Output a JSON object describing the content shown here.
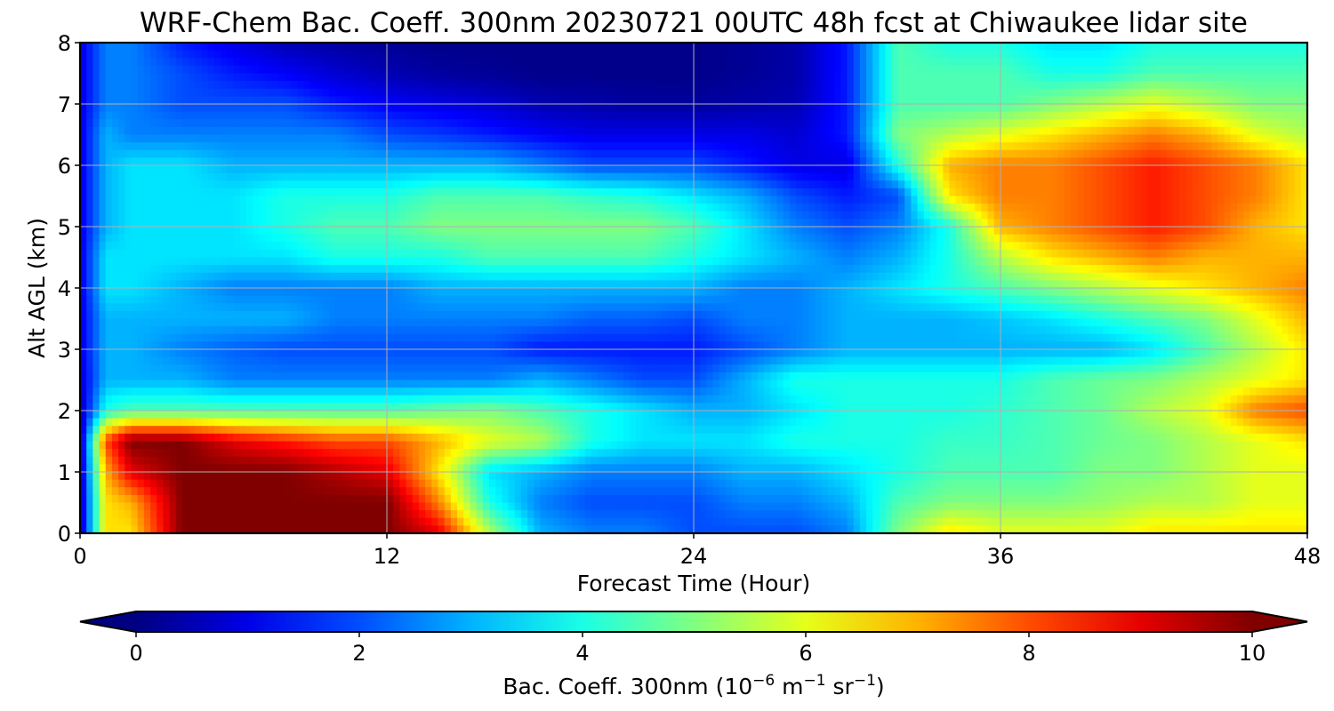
{
  "chart_data": {
    "type": "heatmap",
    "title": "WRF-Chem Bac. Coeff. 300nm  20230721 00UTC 48h fcst at Chiwaukee lidar site",
    "xlabel": "Forecast Time (Hour)",
    "ylabel": "Alt AGL (km)",
    "xlim": [
      0,
      48
    ],
    "ylim": [
      0,
      8
    ],
    "x_ticks": [
      0,
      12,
      24,
      36,
      48
    ],
    "y_ticks": [
      0,
      1,
      2,
      3,
      4,
      5,
      6,
      7,
      8
    ],
    "grid": true,
    "colormap": "jet",
    "colorbar": {
      "label_main": "Bac. Coeff. 300nm  (10",
      "label_exp1": "−6",
      "label_mid": " m",
      "label_exp2": "−1",
      "label_mid2": " sr",
      "label_exp3": "−1",
      "label_end": ")",
      "range": [
        0,
        10
      ],
      "ticks": [
        0,
        2,
        4,
        6,
        8,
        10
      ],
      "extend": "both",
      "placement": "bottom"
    },
    "x": [
      0,
      1,
      2,
      4,
      6,
      8,
      10,
      12,
      14,
      16,
      18,
      20,
      22,
      24,
      26,
      28,
      30,
      32,
      34,
      36,
      38,
      40,
      42,
      44,
      46,
      48
    ],
    "y": [
      0,
      0.5,
      1,
      1.5,
      2,
      2.5,
      3,
      3.5,
      4,
      4.5,
      5,
      5.5,
      6,
      6.5,
      7,
      7.5,
      8
    ],
    "z": [
      [
        0.5,
        6.5,
        6.5,
        10,
        10,
        10,
        10,
        10,
        9,
        5.5,
        3,
        2.5,
        2.5,
        2,
        2,
        2,
        2.5,
        5,
        6.5,
        6,
        6,
        6,
        6.5,
        6.5,
        6.5,
        6.5
      ],
      [
        0.5,
        6.5,
        7,
        10,
        10,
        10,
        10,
        10,
        7.5,
        4,
        2.5,
        2,
        2,
        2,
        2.5,
        2.5,
        3,
        4.5,
        5,
        5,
        5,
        5.2,
        5.5,
        5.5,
        6,
        6
      ],
      [
        0.5,
        7,
        9,
        10,
        10,
        10,
        9.5,
        9,
        6.5,
        3.5,
        3,
        2.5,
        2.5,
        2.5,
        3,
        3,
        3.5,
        4,
        4.5,
        4.5,
        4.5,
        5,
        5,
        5.5,
        6,
        6
      ],
      [
        0.5,
        8,
        10,
        10,
        9,
        8.5,
        8,
        8,
        7,
        6,
        5.5,
        4,
        3.5,
        3.5,
        3.5,
        4,
        4,
        4,
        4.3,
        4.3,
        4.5,
        4.8,
        5,
        5.5,
        6,
        6.5
      ],
      [
        0.5,
        4,
        4.5,
        4.5,
        4.5,
        4.5,
        4.5,
        4.5,
        4.8,
        5,
        4.5,
        4,
        3.5,
        3,
        3,
        3.5,
        4,
        4,
        4,
        4.2,
        4.5,
        4.8,
        5.5,
        6,
        7.5,
        8
      ],
      [
        0.8,
        3,
        3,
        3,
        2.5,
        2.5,
        2.5,
        2.5,
        2.5,
        2.5,
        3,
        2.5,
        2,
        2,
        3,
        4,
        4,
        4,
        4,
        4,
        4.5,
        4.8,
        5,
        5.5,
        6,
        6.5
      ],
      [
        1,
        3,
        3,
        2.5,
        2.2,
        2,
        2,
        2,
        2,
        2,
        1.5,
        1.5,
        1.5,
        1.5,
        2,
        2.5,
        3,
        3,
        3,
        3,
        3,
        3,
        3.5,
        4.5,
        5.5,
        6.5
      ],
      [
        1,
        3,
        3,
        3,
        3,
        3,
        2.5,
        2.5,
        2.5,
        2.5,
        2.5,
        2.2,
        2.2,
        2,
        2.5,
        2.5,
        3,
        3,
        3,
        3.2,
        3.5,
        4,
        4.5,
        5,
        6,
        7
      ],
      [
        1,
        3.5,
        3.5,
        3,
        2.5,
        2.5,
        2.5,
        2.5,
        3,
        3,
        3,
        3,
        3,
        3,
        2.5,
        2.5,
        3,
        3.5,
        4,
        4.5,
        5,
        5.5,
        6,
        6.5,
        7,
        7.5
      ],
      [
        1,
        3.5,
        3.5,
        3.5,
        3.5,
        3.5,
        4,
        4,
        4,
        4.5,
        4.5,
        4.5,
        4.5,
        4,
        3.5,
        3,
        2.5,
        3,
        4,
        5.5,
        6.5,
        7,
        7.5,
        7,
        7,
        7
      ],
      [
        1,
        3,
        3.5,
        3.5,
        3.5,
        4,
        4.5,
        4.5,
        5,
        5,
        5,
        5,
        5,
        4.5,
        3.5,
        2.5,
        2,
        2.5,
        4,
        7,
        7.5,
        8,
        8.5,
        8,
        7,
        6.5
      ],
      [
        1,
        3,
        3.5,
        3.5,
        3.5,
        4,
        4,
        4,
        4.5,
        4.5,
        4.5,
        4.2,
        4,
        3.5,
        3,
        2,
        1.5,
        2,
        6.5,
        7.5,
        7.5,
        8,
        8.5,
        8,
        7.5,
        6.5
      ],
      [
        1,
        3,
        3.5,
        3.5,
        3,
        3,
        3,
        3,
        3,
        3,
        2.5,
        2,
        2,
        2,
        1.5,
        1,
        1,
        4,
        7,
        7.5,
        7.5,
        8,
        8.5,
        8,
        7.5,
        6.5
      ],
      [
        1,
        3,
        2.5,
        2.5,
        2.5,
        2.5,
        2.5,
        2,
        1.8,
        1.5,
        1.2,
        1,
        1,
        1,
        1,
        0.8,
        1.5,
        5,
        5.5,
        6,
        6.5,
        7,
        7.5,
        7,
        6,
        5.5
      ],
      [
        1,
        2.5,
        2.5,
        2,
        2,
        2,
        1.5,
        1.2,
        1,
        0.8,
        0.5,
        0.4,
        0.3,
        0.3,
        0.4,
        0.5,
        1.5,
        4.5,
        4.5,
        4.5,
        5,
        5.5,
        6,
        5.5,
        5,
        5
      ],
      [
        1,
        2.5,
        2.5,
        2,
        1.5,
        1.2,
        0.8,
        0.5,
        0.3,
        0.2,
        0.1,
        0.1,
        0.1,
        0.1,
        0.2,
        0.4,
        1.5,
        4.5,
        4.5,
        4.5,
        4,
        4,
        4.5,
        4.5,
        4.5,
        4.5
      ],
      [
        1,
        2.5,
        2.5,
        1.5,
        1,
        0.5,
        0.3,
        0.2,
        0.1,
        0.1,
        0.1,
        0.1,
        0.1,
        0.1,
        0.2,
        0.4,
        1.5,
        4.5,
        4,
        4,
        3.5,
        3.5,
        4,
        4,
        4,
        4
      ]
    ]
  }
}
